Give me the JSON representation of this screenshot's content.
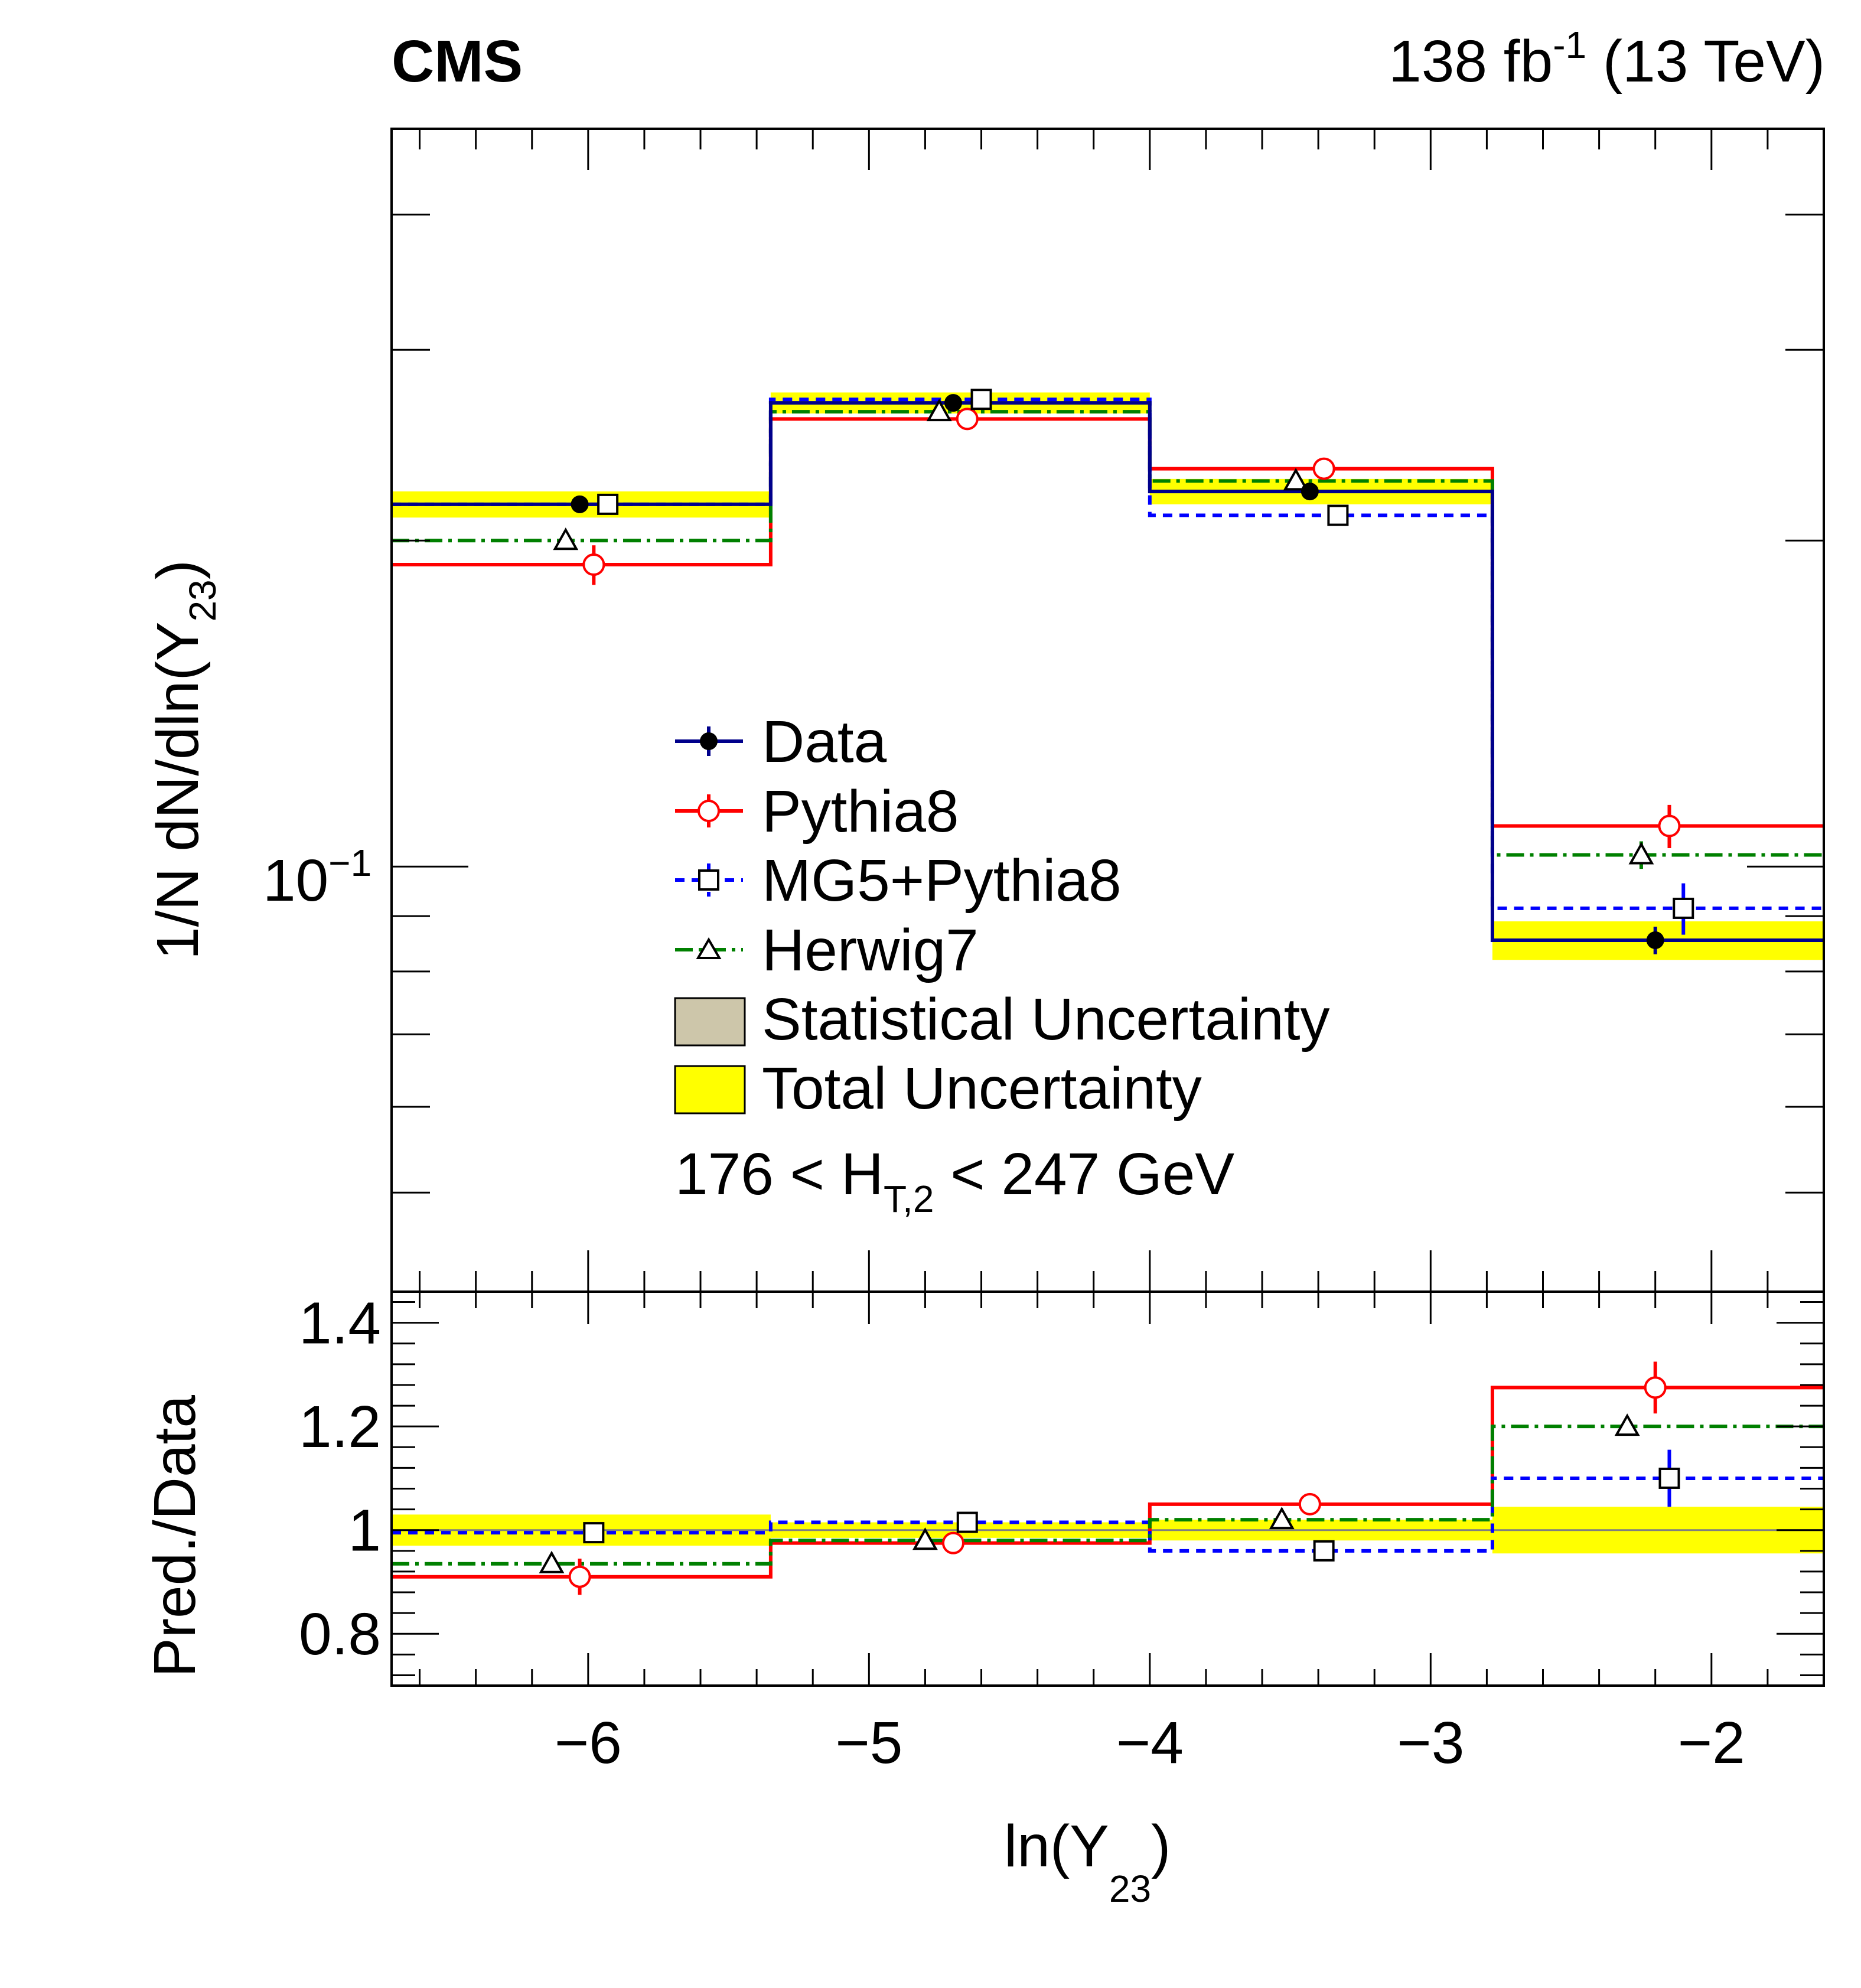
{
  "header": {
    "experiment": "CMS",
    "lumi_value": "138 fb",
    "lumi_exp": "-1",
    "energy": " (13 TeV)"
  },
  "chart_data": [
    {
      "type": "line",
      "panel": "main",
      "ylabel_main": "1/N dN/dln(Y",
      "ylabel_sub": "23",
      "ylabel_close": ")",
      "yscale": "log",
      "ylim": [
        0.0405,
        0.48
      ],
      "ytick_base": "10",
      "ytick_exp": "−1",
      "bin_edges": [
        -6.7,
        -5.35,
        -4.0,
        -2.78,
        -1.6
      ],
      "annotation": {
        "prefix": "176 < H",
        "sub": "T,2",
        "suffix": " < 247 GeV"
      },
      "legend": [
        {
          "label": "Data",
          "key": "data"
        },
        {
          "label": "Pythia8",
          "key": "pythia"
        },
        {
          "label": "MG5+Pythia8",
          "key": "mg5"
        },
        {
          "label": "Herwig7",
          "key": "herwig"
        },
        {
          "label": "Statistical Uncertainty",
          "key": "stat"
        },
        {
          "label": "Total Uncertainty",
          "key": "total"
        }
      ],
      "series": [
        {
          "name": "Data",
          "key": "data",
          "color": "#00008b",
          "marker": "filled-circle",
          "style": "solid",
          "values": [
            0.216,
            0.268,
            0.222,
            0.0855
          ],
          "marker_x": [
            -6.03,
            -4.7,
            -3.43,
            -2.2
          ],
          "err": [
            0.004,
            0.0035,
            0.003,
            0.0025
          ],
          "total_unc": [
            0.006,
            0.006,
            0.006,
            0.0035
          ]
        },
        {
          "name": "Pythia8",
          "key": "pythia",
          "color": "#ff0000",
          "marker": "open-circle",
          "style": "solid",
          "values": [
            0.19,
            0.259,
            0.233,
            0.109
          ],
          "marker_x": [
            -5.98,
            -4.65,
            -3.38,
            -2.15
          ],
          "err": [
            0.008,
            0.004,
            0.004,
            0.005
          ]
        },
        {
          "name": "MG5+Pythia8",
          "key": "mg5",
          "color": "#0000ff",
          "marker": "open-square",
          "style": "dashed",
          "values": [
            0.216,
            0.27,
            0.211,
            0.0915
          ],
          "marker_x": [
            -5.93,
            -4.6,
            -3.33,
            -2.1
          ],
          "err": [
            0.004,
            0.003,
            0.003,
            0.005
          ]
        },
        {
          "name": "Herwig7",
          "key": "herwig",
          "color": "#008000",
          "marker": "open-triangle",
          "style": "dashdot",
          "values": [
            0.2,
            0.263,
            0.227,
            0.1025
          ],
          "marker_x": [
            -6.08,
            -4.75,
            -3.48,
            -2.25
          ],
          "err": [
            0.003,
            0.003,
            0.003,
            0.003
          ]
        }
      ]
    },
    {
      "type": "line",
      "panel": "ratio",
      "ylabel": "Pred./Data",
      "xlabel_main": "ln(Y",
      "xlabel_sub": "23",
      "xlabel_close": ")",
      "ylim": [
        0.7,
        1.46
      ],
      "yticks": [
        0.8,
        1.0,
        1.2,
        1.4
      ],
      "ytick_labels": [
        "0.8",
        "1",
        "1.2",
        "1.4"
      ],
      "xlim": [
        -6.7,
        -1.6
      ],
      "xticks": [
        -6,
        -5,
        -4,
        -3,
        -2
      ],
      "xtick_labels": [
        "−6",
        "−5",
        "−4",
        "−3",
        "−2"
      ],
      "data_total_unc": [
        0.03,
        0.015,
        0.02,
        0.045
      ],
      "series": [
        {
          "name": "Pythia8",
          "key": "pythia",
          "values": [
            0.91,
            0.975,
            1.05,
            1.275
          ],
          "err": [
            0.035,
            0.01,
            0.02,
            0.05
          ]
        },
        {
          "name": "MG5+Pythia8",
          "key": "mg5",
          "values": [
            0.995,
            1.015,
            0.96,
            1.1
          ],
          "err": [
            0.015,
            0.01,
            0.012,
            0.055
          ]
        },
        {
          "name": "Herwig7",
          "key": "herwig",
          "values": [
            0.935,
            0.98,
            1.02,
            1.2
          ],
          "err": [
            0.01,
            0.01,
            0.01,
            0.012
          ]
        }
      ]
    }
  ]
}
